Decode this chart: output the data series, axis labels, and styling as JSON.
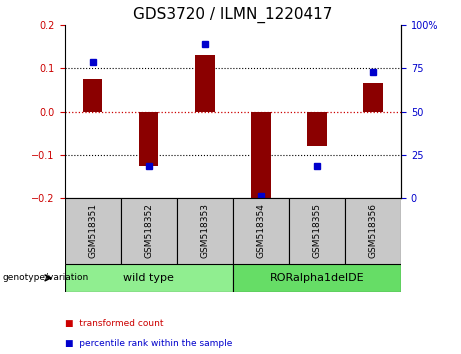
{
  "title": "GDS3720 / ILMN_1220417",
  "categories": [
    "GSM518351",
    "GSM518352",
    "GSM518353",
    "GSM518354",
    "GSM518355",
    "GSM518356"
  ],
  "bar_values": [
    0.075,
    -0.125,
    0.13,
    -0.2,
    -0.08,
    0.065
  ],
  "percentile_values": [
    0.115,
    -0.125,
    0.155,
    -0.195,
    -0.125,
    0.09
  ],
  "bar_color": "#8B0000",
  "dot_color": "#0000CC",
  "ylim": [
    -0.2,
    0.2
  ],
  "right_ylim": [
    0,
    100
  ],
  "right_yticks": [
    0,
    25,
    50,
    75,
    100
  ],
  "right_yticklabels": [
    "0",
    "25",
    "50",
    "75",
    "100%"
  ],
  "left_yticks": [
    -0.2,
    -0.1,
    0,
    0.1,
    0.2
  ],
  "hline_zero_color": "#CC0000",
  "group_labels": [
    "wild type",
    "RORalpha1delDE"
  ],
  "group_ranges": [
    [
      0,
      3
    ],
    [
      3,
      6
    ]
  ],
  "group_colors_sample": "#C8C8C8",
  "group_color_wt": "#90EE90",
  "group_color_ror": "#66DD66",
  "genotype_label": "genotype/variation",
  "legend_items": [
    {
      "label": "transformed count",
      "color": "#CC0000"
    },
    {
      "label": "percentile rank within the sample",
      "color": "#0000CC"
    }
  ],
  "bar_width": 0.35,
  "title_fontsize": 11,
  "tick_label_fontsize": 7,
  "xlabel_color_left": "#CC0000",
  "xlabel_color_right": "#0000CC"
}
